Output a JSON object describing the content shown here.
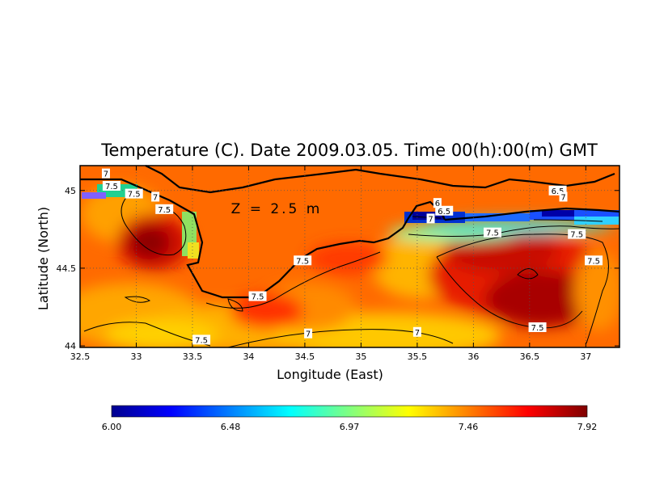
{
  "map": {
    "title": "Temperature (C). Date 2009.03.05. Time 00(h):00(m) GMT",
    "depth_label": "Z = 2.5 m",
    "xlabel": "Longitude (East)",
    "ylabel": "Latitude (North)",
    "lon_range": [
      32.5,
      37.3
    ],
    "lat_range": [
      43.99,
      45.16
    ],
    "x_ticks": [
      "32.5",
      "33",
      "33.5",
      "34",
      "34.5",
      "35",
      "35.5",
      "36",
      "36.5",
      "37"
    ],
    "x_tick_values": [
      32.5,
      33,
      33.5,
      34,
      34.5,
      35,
      35.5,
      36,
      36.5,
      37
    ],
    "y_ticks": [
      "44",
      "44.5",
      "45"
    ],
    "y_tick_values": [
      44,
      44.5,
      45
    ],
    "grid": true,
    "contour_labels": [
      {
        "text": "7",
        "lon": 32.73,
        "lat": 45.11
      },
      {
        "text": "7.5",
        "lon": 32.78,
        "lat": 45.03
      },
      {
        "text": "7.5",
        "lon": 32.98,
        "lat": 44.98
      },
      {
        "text": "7",
        "lon": 33.17,
        "lat": 44.96
      },
      {
        "text": "7.5",
        "lon": 33.25,
        "lat": 44.88
      },
      {
        "text": "7.5",
        "lon": 34.48,
        "lat": 44.55
      },
      {
        "text": "7.5",
        "lon": 34.08,
        "lat": 44.32
      },
      {
        "text": "7.5",
        "lon": 33.58,
        "lat": 44.04
      },
      {
        "text": "7",
        "lon": 34.53,
        "lat": 44.08
      },
      {
        "text": "7",
        "lon": 35.5,
        "lat": 44.09
      },
      {
        "text": "6",
        "lon": 35.68,
        "lat": 44.92
      },
      {
        "text": "6.5",
        "lon": 35.74,
        "lat": 44.87
      },
      {
        "text": "7",
        "lon": 35.62,
        "lat": 44.82
      },
      {
        "text": "6.5",
        "lon": 36.75,
        "lat": 45.0
      },
      {
        "text": "7",
        "lon": 36.8,
        "lat": 44.96
      },
      {
        "text": "7.5",
        "lon": 36.17,
        "lat": 44.73
      },
      {
        "text": "7.5",
        "lon": 36.92,
        "lat": 44.72
      },
      {
        "text": "7.5",
        "lon": 37.07,
        "lat": 44.55
      },
      {
        "text": "7.5",
        "lon": 36.57,
        "lat": 44.12
      }
    ]
  },
  "colorbar": {
    "tick_labels": [
      "6.00",
      "6.48",
      "6.97",
      "7.46",
      "7.92"
    ],
    "min": 6.0,
    "max": 7.92,
    "colors": [
      "#00008f",
      "#0000ff",
      "#0080ff",
      "#00ffff",
      "#80ff80",
      "#ffff00",
      "#ff8000",
      "#ff0000",
      "#7f0000"
    ]
  }
}
